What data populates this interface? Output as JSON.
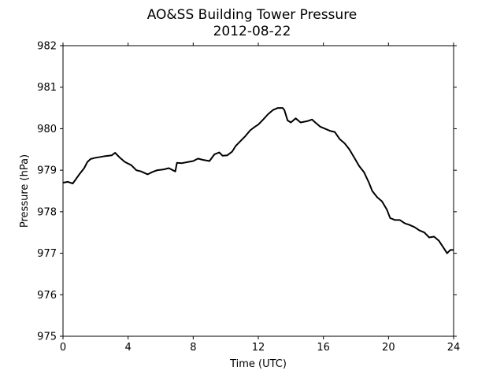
{
  "chart_data": {
    "type": "line",
    "title": "AO&SS Building Tower Pressure",
    "subtitle": "2012-08-22",
    "xlabel": "Time (UTC)",
    "ylabel": "Pressure (hPa)",
    "xlim": [
      0,
      24
    ],
    "ylim": [
      975,
      982
    ],
    "xticks": [
      0,
      4,
      8,
      12,
      16,
      20,
      24
    ],
    "yticks": [
      975,
      976,
      977,
      978,
      979,
      980,
      981,
      982
    ],
    "grid": false,
    "line_color": "#000000",
    "series": [
      {
        "x": [
          0,
          0.3,
          0.6,
          1.0,
          1.3,
          1.5,
          1.7,
          2.0,
          2.3,
          2.6,
          3.0,
          3.2,
          3.5,
          3.8,
          4.2,
          4.5,
          4.8,
          5.2,
          5.5,
          5.8,
          6.2,
          6.5,
          6.9,
          7.0,
          7.3,
          7.7,
          8.0,
          8.3,
          8.6,
          9.0,
          9.3,
          9.6,
          9.8,
          10.1,
          10.4,
          10.6,
          10.9,
          11.2,
          11.5,
          11.8,
          12.0,
          12.3,
          12.6,
          12.9,
          13.2,
          13.5,
          13.6,
          13.8,
          14.0,
          14.3,
          14.6,
          15.0,
          15.3,
          15.5,
          15.8,
          16.1,
          16.4,
          16.7,
          17.0,
          17.3,
          17.6,
          17.9,
          18.2,
          18.5,
          18.8,
          19.0,
          19.3,
          19.6,
          19.9,
          20.1,
          20.4,
          20.7,
          21.0,
          21.3,
          21.6,
          21.9,
          22.2,
          22.5,
          22.8,
          23.1,
          23.4,
          23.6,
          23.8,
          24.0
        ],
        "y": [
          978.7,
          978.72,
          978.68,
          978.9,
          979.05,
          979.2,
          979.27,
          979.3,
          979.32,
          979.34,
          979.36,
          979.42,
          979.3,
          979.2,
          979.12,
          979.0,
          978.97,
          978.9,
          978.96,
          979.0,
          979.02,
          979.05,
          978.97,
          979.18,
          979.17,
          979.2,
          979.22,
          979.28,
          979.25,
          979.22,
          979.38,
          979.43,
          979.35,
          979.36,
          979.45,
          979.58,
          979.7,
          979.82,
          979.96,
          980.05,
          980.1,
          980.22,
          980.35,
          980.45,
          980.5,
          980.5,
          980.45,
          980.2,
          980.15,
          980.25,
          980.15,
          980.18,
          980.22,
          980.15,
          980.05,
          980.0,
          979.95,
          979.92,
          979.75,
          979.65,
          979.5,
          979.3,
          979.1,
          978.95,
          978.7,
          978.5,
          978.35,
          978.25,
          978.05,
          977.85,
          977.8,
          977.8,
          977.72,
          977.68,
          977.63,
          977.55,
          977.5,
          977.38,
          977.4,
          977.3,
          977.12,
          977.0,
          977.08,
          977.08
        ]
      }
    ]
  }
}
